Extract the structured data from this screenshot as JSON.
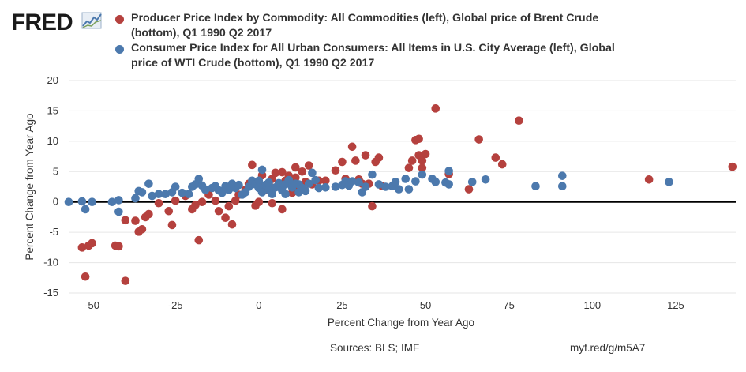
{
  "brand": {
    "logo_text": "FRED"
  },
  "colors": {
    "series1": "#b5413e",
    "series2": "#4c79ad",
    "grid": "#e6e6e6",
    "zero_line": "#000000",
    "text": "#333333"
  },
  "footer": {
    "sources": "Sources: BLS; IMF",
    "link": "myf.red/g/m5A7"
  },
  "chart_data": {
    "type": "scatter",
    "xlabel": "Percent Change from Year Ago",
    "ylabel": "Percent Change from Year Ago",
    "xlim": [
      -57,
      143
    ],
    "ylim": [
      -15,
      20
    ],
    "xticks": [
      -50,
      -25,
      0,
      25,
      50,
      75,
      100,
      125
    ],
    "xtick_labels": [
      "-50",
      "-25",
      "0",
      "25",
      "50",
      "75",
      "100",
      "125"
    ],
    "yticks": [
      -15,
      -10,
      -5,
      0,
      5,
      10,
      15,
      20
    ],
    "ytick_labels": [
      "-15",
      "-10",
      "-5",
      "0",
      "5",
      "10",
      "15",
      "20"
    ],
    "grid": true,
    "legend_position": "top",
    "series": [
      {
        "name": "Producer Price Index by Commodity: All Commodities (left), Global price of Brent Crude (bottom), Q1 1990 Q2 2017",
        "color": "#b5413e",
        "points": [
          [
            -53,
            -7.5
          ],
          [
            -51,
            -7.2
          ],
          [
            -50,
            -6.8
          ],
          [
            -52,
            -12.3
          ],
          [
            -43,
            -7.2
          ],
          [
            -42,
            -7.3
          ],
          [
            -40,
            -3
          ],
          [
            -40,
            -13
          ],
          [
            -37,
            -3.1
          ],
          [
            -36,
            -4.9
          ],
          [
            -35,
            -4.5
          ],
          [
            -34,
            -2.5
          ],
          [
            -33,
            -2
          ],
          [
            -30,
            -0.2
          ],
          [
            -27,
            -1.5
          ],
          [
            -26,
            -3.8
          ],
          [
            -25,
            0.2
          ],
          [
            -22,
            1
          ],
          [
            -20,
            -1.2
          ],
          [
            -19,
            -0.5
          ],
          [
            -18,
            -6.3
          ],
          [
            -17,
            0
          ],
          [
            -15,
            1.2
          ],
          [
            -13,
            0.2
          ],
          [
            -12,
            -1.5
          ],
          [
            -10,
            -2.6
          ],
          [
            -9,
            -0.7
          ],
          [
            -8,
            -3.7
          ],
          [
            -7,
            0.2
          ],
          [
            -6,
            1.2
          ],
          [
            -4,
            2
          ],
          [
            -3,
            3
          ],
          [
            -2,
            6.1
          ],
          [
            -1,
            -0.6
          ],
          [
            0,
            0
          ],
          [
            1,
            2.5
          ],
          [
            1,
            4.4
          ],
          [
            2,
            2
          ],
          [
            3,
            3
          ],
          [
            4,
            -0.2
          ],
          [
            4,
            3.8
          ],
          [
            5,
            4.8
          ],
          [
            6,
            2.5
          ],
          [
            7,
            4.9
          ],
          [
            7,
            -1.2
          ],
          [
            8,
            3.5
          ],
          [
            9,
            4.3
          ],
          [
            10,
            1.5
          ],
          [
            11,
            5.7
          ],
          [
            11,
            4
          ],
          [
            12,
            2
          ],
          [
            13,
            5
          ],
          [
            14,
            3.3
          ],
          [
            15,
            6
          ],
          [
            16,
            2.9
          ],
          [
            18,
            3.5
          ],
          [
            20,
            3.5
          ],
          [
            23,
            5.2
          ],
          [
            25,
            6.6
          ],
          [
            26,
            3.8
          ],
          [
            28,
            9.1
          ],
          [
            29,
            6.8
          ],
          [
            30,
            3.7
          ],
          [
            31,
            3
          ],
          [
            32,
            7.7
          ],
          [
            33,
            3
          ],
          [
            34,
            -0.7
          ],
          [
            35,
            6.6
          ],
          [
            36,
            7.3
          ],
          [
            37,
            2.6
          ],
          [
            45,
            5.6
          ],
          [
            46,
            6.8
          ],
          [
            47,
            10.2
          ],
          [
            48,
            10.4
          ],
          [
            48,
            7.7
          ],
          [
            49,
            6.8
          ],
          [
            49,
            5.6
          ],
          [
            50,
            7.9
          ],
          [
            53,
            15.4
          ],
          [
            57,
            4.6
          ],
          [
            63,
            2.1
          ],
          [
            66,
            10.3
          ],
          [
            71,
            7.3
          ],
          [
            73,
            6.2
          ],
          [
            78,
            13.4
          ],
          [
            117,
            3.7
          ],
          [
            142,
            5.8
          ]
        ]
      },
      {
        "name": "Consumer Price Index for All Urban Consumers: All Items in U.S. City Average (left), Global price of WTI Crude (bottom), Q1 1990 Q2 2017",
        "color": "#4c79ad",
        "points": [
          [
            -57,
            0
          ],
          [
            -53,
            0.1
          ],
          [
            -52,
            -1.2
          ],
          [
            -50,
            0
          ],
          [
            -44,
            0
          ],
          [
            -42,
            0.3
          ],
          [
            -42,
            -1.6
          ],
          [
            -37,
            0.6
          ],
          [
            -36,
            1.8
          ],
          [
            -35,
            1.6
          ],
          [
            -33,
            3
          ],
          [
            -32,
            1
          ],
          [
            -30,
            1.3
          ],
          [
            -28,
            1.3
          ],
          [
            -26,
            1.6
          ],
          [
            -25,
            2.5
          ],
          [
            -23,
            1.5
          ],
          [
            -21,
            1.3
          ],
          [
            -20,
            2.5
          ],
          [
            -19,
            2.9
          ],
          [
            -18,
            3.8
          ],
          [
            -17,
            2.7
          ],
          [
            -16,
            2
          ],
          [
            -14,
            2.3
          ],
          [
            -13,
            2.6
          ],
          [
            -12,
            1.9
          ],
          [
            -11,
            1.5
          ],
          [
            -10,
            2.6
          ],
          [
            -9,
            2
          ],
          [
            -8,
            3
          ],
          [
            -7,
            2.3
          ],
          [
            -6,
            2.8
          ],
          [
            -5,
            1.2
          ],
          [
            -4,
            1.6
          ],
          [
            -3,
            2.5
          ],
          [
            -2,
            3.5
          ],
          [
            -1,
            2.9
          ],
          [
            0,
            3.5
          ],
          [
            0,
            2.3
          ],
          [
            1,
            5.3
          ],
          [
            1,
            1.6
          ],
          [
            2,
            2.8
          ],
          [
            3,
            2
          ],
          [
            3,
            3.2
          ],
          [
            4,
            1.3
          ],
          [
            5,
            2.4
          ],
          [
            6,
            3.1
          ],
          [
            7,
            1.9
          ],
          [
            8,
            2.9
          ],
          [
            8,
            1.3
          ],
          [
            9,
            3.6
          ],
          [
            10,
            2.4
          ],
          [
            11,
            3
          ],
          [
            12,
            1.6
          ],
          [
            12,
            2.9
          ],
          [
            13,
            2.3
          ],
          [
            14,
            1.8
          ],
          [
            15,
            3
          ],
          [
            16,
            4.8
          ],
          [
            17,
            3.6
          ],
          [
            18,
            2.3
          ],
          [
            20,
            2.4
          ],
          [
            23,
            2.5
          ],
          [
            25,
            2.8
          ],
          [
            26,
            3.4
          ],
          [
            27,
            2.7
          ],
          [
            28,
            3.4
          ],
          [
            30,
            3.2
          ],
          [
            31,
            1.6
          ],
          [
            32,
            2.5
          ],
          [
            34,
            4.5
          ],
          [
            36,
            2.9
          ],
          [
            38,
            2.5
          ],
          [
            40,
            2.6
          ],
          [
            41,
            3.3
          ],
          [
            42,
            2.1
          ],
          [
            44,
            3.8
          ],
          [
            45,
            2.1
          ],
          [
            47,
            3.4
          ],
          [
            49,
            4.5
          ],
          [
            52,
            3.8
          ],
          [
            53,
            3.3
          ],
          [
            56,
            3.2
          ],
          [
            57,
            5.1
          ],
          [
            57,
            2.9
          ],
          [
            64,
            3.3
          ],
          [
            68,
            3.7
          ],
          [
            83,
            2.6
          ],
          [
            91,
            4.3
          ],
          [
            91,
            2.6
          ],
          [
            123,
            3.3
          ]
        ]
      }
    ]
  }
}
